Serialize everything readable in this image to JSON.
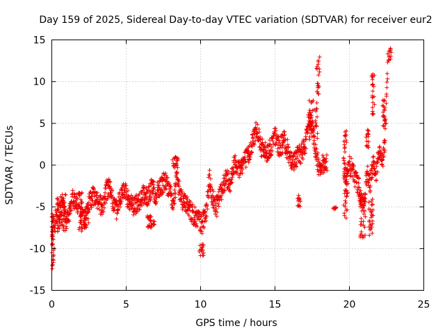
{
  "chart_data": {
    "type": "scatter",
    "title": "Day 159 of 2025, Sidereal Day-to-day VTEC variation (SDTVAR) for receiver eur2",
    "xlabel": "GPS time / hours",
    "ylabel": "SDTVAR / TECUs",
    "xlim": [
      0,
      25
    ],
    "ylim": [
      -15,
      15
    ],
    "xticks": [
      0,
      5,
      10,
      15,
      20,
      25
    ],
    "yticks": [
      -15,
      -10,
      -5,
      0,
      5,
      10,
      15
    ],
    "xtick_labels": [
      "0",
      "5",
      "10",
      "15",
      "20",
      "25"
    ],
    "ytick_labels": [
      "-15",
      "-10",
      "-5",
      "0",
      "5",
      "10",
      "15"
    ],
    "grid": true,
    "marker": "+",
    "color": "#ee0000",
    "series": [
      {
        "name": "SDTVAR",
        "trace": [
          [
            0.0,
            -6.0
          ],
          [
            0.05,
            -8.5
          ],
          [
            0.1,
            -11.5
          ],
          [
            0.15,
            -9.0
          ],
          [
            0.25,
            -6.5
          ],
          [
            0.4,
            -5.0
          ],
          [
            0.55,
            -5.8
          ],
          [
            0.7,
            -4.5
          ],
          [
            0.85,
            -5.5
          ],
          [
            1.0,
            -6.5
          ],
          [
            1.2,
            -5.5
          ],
          [
            1.4,
            -4.2
          ],
          [
            1.7,
            -4.8
          ],
          [
            2.0,
            -4.0
          ],
          [
            2.2,
            -6.5
          ],
          [
            2.5,
            -4.5
          ],
          [
            2.8,
            -3.5
          ],
          [
            3.1,
            -4.5
          ],
          [
            3.4,
            -5.0
          ],
          [
            3.7,
            -3.0
          ],
          [
            3.9,
            -2.5
          ],
          [
            4.1,
            -4.5
          ],
          [
            4.3,
            -5.5
          ],
          [
            4.6,
            -4.0
          ],
          [
            4.9,
            -3.0
          ],
          [
            5.2,
            -4.5
          ],
          [
            5.5,
            -5.0
          ],
          [
            5.8,
            -4.5
          ],
          [
            6.1,
            -3.5
          ],
          [
            6.4,
            -4.0
          ],
          [
            6.7,
            -2.8
          ],
          [
            7.0,
            -3.5
          ],
          [
            7.3,
            -2.5
          ],
          [
            7.6,
            -2.0
          ],
          [
            7.9,
            -3.0
          ],
          [
            8.2,
            -4.5
          ],
          [
            8.4,
            -1.0
          ],
          [
            8.6,
            -3.5
          ],
          [
            8.9,
            -4.5
          ],
          [
            9.2,
            -5.0
          ],
          [
            9.5,
            -6.0
          ],
          [
            9.8,
            -6.5
          ],
          [
            10.1,
            -7.0
          ],
          [
            10.4,
            -5.5
          ],
          [
            10.6,
            -1.5
          ],
          [
            10.8,
            -4.0
          ],
          [
            11.1,
            -5.0
          ],
          [
            11.4,
            -3.0
          ],
          [
            11.7,
            -1.5
          ],
          [
            12.0,
            -2.0
          ],
          [
            12.3,
            0.5
          ],
          [
            12.6,
            -0.5
          ],
          [
            12.9,
            0.5
          ],
          [
            13.2,
            1.0
          ],
          [
            13.5,
            3.0
          ],
          [
            13.8,
            4.5
          ],
          [
            14.1,
            2.0
          ],
          [
            14.4,
            1.5
          ],
          [
            14.7,
            2.0
          ],
          [
            15.0,
            3.5
          ],
          [
            15.3,
            2.0
          ],
          [
            15.6,
            3.0
          ],
          [
            15.9,
            1.5
          ],
          [
            16.2,
            0.5
          ],
          [
            16.5,
            1.0
          ],
          [
            16.8,
            1.5
          ],
          [
            17.1,
            3.0
          ],
          [
            17.3,
            6.0
          ],
          [
            17.5,
            4.0
          ],
          [
            17.7,
            2.0
          ],
          [
            17.9,
            0.0
          ],
          [
            18.2,
            0.0
          ],
          [
            18.5,
            0.5
          ],
          [
            19.6,
            0.5
          ],
          [
            19.8,
            -2.0
          ],
          [
            20.0,
            0.0
          ],
          [
            20.3,
            -1.0
          ],
          [
            20.6,
            -2.5
          ],
          [
            20.8,
            -4.0
          ],
          [
            21.0,
            -5.0
          ],
          [
            21.2,
            -1.0
          ],
          [
            21.4,
            -2.5
          ],
          [
            21.6,
            0.5
          ],
          [
            21.8,
            -1.0
          ],
          [
            22.0,
            1.5
          ],
          [
            22.2,
            0.0
          ],
          [
            22.4,
            3.0
          ],
          [
            22.6,
            13.5
          ]
        ],
        "clusters": [
          {
            "x": [
              0.0,
              0.15
            ],
            "y": [
              -12.5,
              -5.5
            ]
          },
          {
            "x": [
              0.3,
              1.0
            ],
            "y": [
              -8.0,
              -3.5
            ]
          },
          {
            "x": [
              1.8,
              2.5
            ],
            "y": [
              -8.0,
              -5.5
            ]
          },
          {
            "x": [
              6.4,
              6.9
            ],
            "y": [
              -7.5,
              -6.0
            ]
          },
          {
            "x": [
              8.1,
              8.5
            ],
            "y": [
              -0.5,
              1.0
            ]
          },
          {
            "x": [
              9.9,
              10.2
            ],
            "y": [
              -11.0,
              -9.5
            ]
          },
          {
            "x": [
              16.5,
              16.7
            ],
            "y": [
              -5.0,
              -3.5
            ]
          },
          {
            "x": [
              17.2,
              17.9
            ],
            "y": [
              3.0,
              8.0
            ]
          },
          {
            "x": [
              17.8,
              18.0
            ],
            "y": [
              8.5,
              13.0
            ]
          },
          {
            "x": [
              18.9,
              19.1
            ],
            "y": [
              -5.3,
              -5.0
            ]
          },
          {
            "x": [
              19.6,
              19.9
            ],
            "y": [
              -6.5,
              4.5
            ]
          },
          {
            "x": [
              20.7,
              21.1
            ],
            "y": [
              -9.0,
              -3.0
            ]
          },
          {
            "x": [
              21.1,
              21.3
            ],
            "y": [
              2.0,
              4.5
            ]
          },
          {
            "x": [
              21.5,
              21.7
            ],
            "y": [
              6.0,
              11.5
            ]
          },
          {
            "x": [
              21.3,
              21.6
            ],
            "y": [
              -8.5,
              -4.0
            ]
          },
          {
            "x": [
              22.2,
              22.4
            ],
            "y": [
              4.5,
              8.0
            ]
          },
          {
            "x": [
              22.6,
              22.8
            ],
            "y": [
              12.5,
              14.0
            ]
          }
        ]
      }
    ]
  }
}
